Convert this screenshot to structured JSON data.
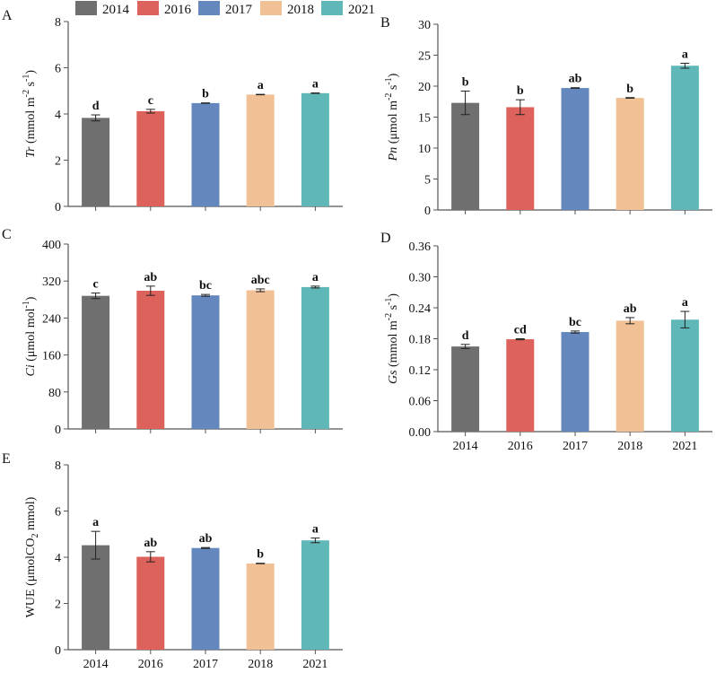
{
  "legend": {
    "placement": "top",
    "entries": [
      {
        "label": "2014",
        "color": "#6f6f6f"
      },
      {
        "label": "2016",
        "color": "#dc625b"
      },
      {
        "label": "2017",
        "color": "#6487bd"
      },
      {
        "label": "2018",
        "color": "#f1c195"
      },
      {
        "label": "2021",
        "color": "#5fb7b8"
      }
    ]
  },
  "chart_data": [
    {
      "panel": "A",
      "type": "bar",
      "categories": [
        "2014",
        "2016",
        "2017",
        "2018",
        "2021"
      ],
      "ylabel_italic": "Tr",
      "ylabel_rest": " (mmol m",
      "ylabel_sup1": "-2",
      "ylabel_mid": " s",
      "ylabel_sup2": "-1",
      "ylabel_end": ")",
      "ylim": [
        0,
        8
      ],
      "yticks": [
        "0",
        "2",
        "4",
        "6",
        "8"
      ],
      "show_xticklabels": false,
      "values": [
        3.83,
        4.12,
        4.47,
        4.84,
        4.9
      ],
      "errors": [
        0.13,
        0.08,
        0.01,
        0.01,
        0.01
      ],
      "letters": [
        "d",
        "c",
        "b",
        "a",
        "a"
      ]
    },
    {
      "panel": "B",
      "type": "bar",
      "categories": [
        "2014",
        "2016",
        "2017",
        "2018",
        "2021"
      ],
      "ylabel_italic": "Pn",
      "ylabel_rest": " (μmol m",
      "ylabel_sup1": "-2",
      "ylabel_mid": " s",
      "ylabel_sup2": "-1",
      "ylabel_end": ")",
      "ylim": [
        0,
        30
      ],
      "yticks": [
        "0",
        "5",
        "10",
        "15",
        "20",
        "25",
        "30"
      ],
      "show_xticklabels": false,
      "values": [
        17.3,
        16.6,
        19.7,
        18.1,
        23.3
      ],
      "errors": [
        1.9,
        1.2,
        0.05,
        0.05,
        0.4
      ],
      "letters": [
        "b",
        "b",
        "ab",
        "b",
        "a"
      ]
    },
    {
      "panel": "C",
      "type": "bar",
      "categories": [
        "2014",
        "2016",
        "2017",
        "2018",
        "2021"
      ],
      "ylabel_italic": "Ci",
      "ylabel_rest": " (μmol mol",
      "ylabel_sup1": "-1",
      "ylabel_mid": "",
      "ylabel_sup2": "",
      "ylabel_end": ")",
      "ylim": [
        0,
        400
      ],
      "yticks": [
        "0",
        "80",
        "160",
        "240",
        "320",
        "400"
      ],
      "show_xticklabels": false,
      "values": [
        288,
        299,
        289,
        300,
        307
      ],
      "errors": [
        6,
        10,
        2,
        3,
        2
      ],
      "letters": [
        "c",
        "ab",
        "bc",
        "abc",
        "a"
      ]
    },
    {
      "panel": "D",
      "type": "bar",
      "categories": [
        "2014",
        "2016",
        "2017",
        "2018",
        "2021"
      ],
      "ylabel_italic": "Gs",
      "ylabel_rest": " (mmol m",
      "ylabel_sup1": "-2",
      "ylabel_mid": " s",
      "ylabel_sup2": "-1",
      "ylabel_end": ")",
      "ylim": [
        0,
        0.36
      ],
      "yticks": [
        "0.00",
        "0.06",
        "0.12",
        "0.18",
        "0.24",
        "0.30",
        "0.36"
      ],
      "show_xticklabels": true,
      "values": [
        0.165,
        0.179,
        0.193,
        0.215,
        0.217
      ],
      "errors": [
        0.004,
        0.001,
        0.002,
        0.006,
        0.016
      ],
      "letters": [
        "d",
        "cd",
        "bc",
        "ab",
        "a"
      ]
    },
    {
      "panel": "E",
      "type": "bar",
      "categories": [
        "2014",
        "2016",
        "2017",
        "2018",
        "2021"
      ],
      "ylabel_italic": "",
      "ylabel_rest": "WUE (μmolCO",
      "ylabel_sub": "2",
      "ylabel_end": " mmol)",
      "ylim": [
        0,
        8
      ],
      "yticks": [
        "0",
        "2",
        "4",
        "6",
        "8"
      ],
      "show_xticklabels": true,
      "values": [
        4.52,
        4.02,
        4.4,
        3.73,
        4.73
      ],
      "errors": [
        0.6,
        0.22,
        0.02,
        0.01,
        0.1
      ],
      "letters": [
        "a",
        "ab",
        "ab",
        "b",
        "a"
      ]
    }
  ]
}
